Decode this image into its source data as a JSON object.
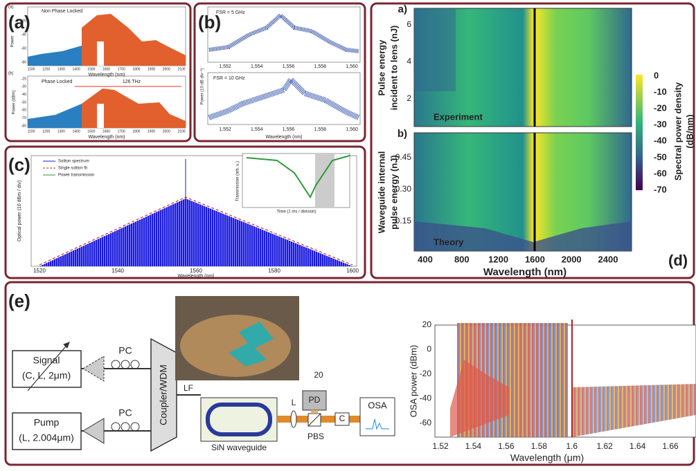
{
  "panel_a": {
    "label": "(a)",
    "top": {
      "sublabel": "(a)",
      "annotation": "Non Phase Locked",
      "y_label": "Power",
      "x_label": "Wavelength (nm)",
      "y_ticks": [
        "-20",
        "-40",
        "-60",
        "-80"
      ]
    },
    "bottom": {
      "sublabel": "(b)",
      "annotation": "Phase Locked",
      "span": "126 THz",
      "y_label": "Power (dBm)",
      "x_label": "Wavelength (nm)",
      "y_ticks": [
        "-20",
        "-30",
        "-40",
        "-50",
        "-60",
        "-70",
        "-80"
      ]
    },
    "x_ticks": [
      "1100",
      "1200",
      "1300",
      "1400",
      "1500",
      "1600",
      "1700",
      "1800",
      "1900",
      "2000",
      "2100"
    ]
  },
  "panel_b": {
    "label": "(b)",
    "top_annotation": "FSR = 5 GHz",
    "bottom_annotation": "FSR = 10 GHz",
    "y_label": "Power (10 dB div⁻¹)",
    "x_label": "Wavelength (nm)",
    "x_ticks": [
      "1,552",
      "1,554",
      "1,556",
      "1,558",
      "1,560"
    ]
  },
  "panel_c": {
    "label": "(c)",
    "legend": [
      "Soliton spectrum",
      "Single soliton fit",
      "Power transmission"
    ],
    "y_label": "Optical power (10 dBm / div)",
    "x_label": "Wavelength (nm)",
    "x_ticks": [
      "1520",
      "1540",
      "1560",
      "1580",
      "1600"
    ],
    "inset": {
      "y_label": "Transmission (arb. u.)",
      "x_label": "Time (1 ms / division)"
    }
  },
  "panel_d": {
    "label": "(d)",
    "top": {
      "sublabel": "a)",
      "y_label_1": "Pulse energy",
      "y_label_2": "incident to lens (nJ)",
      "y_ticks": [
        "6",
        "4",
        "2"
      ],
      "annotation": "Experiment"
    },
    "bottom": {
      "sublabel": "b)",
      "y_label_1": "Waveguide internal",
      "y_label_2": "pulse energy (nJ)",
      "y_ticks": [
        "0.45",
        "0.30",
        "0.15"
      ],
      "annotation": "Theory"
    },
    "x_ticks": [
      "400",
      "800",
      "1200",
      "1600",
      "2000",
      "2400"
    ],
    "x_label": "Wavelength (nm)",
    "colorbar": {
      "ticks": [
        "0",
        "-10",
        "-20",
        "-30",
        "-40",
        "-50",
        "-60",
        "-70"
      ],
      "label_1": "Spectral power density",
      "label_2": "(dB/nm)"
    }
  },
  "panel_e": {
    "label": "(e)",
    "diagram": {
      "signal_1": "Signal",
      "signal_2": "(C, L, 2μm)",
      "pump_1": "Pump",
      "pump_2": "(L, 2.004μm)",
      "pc_top": "PC",
      "pc_bottom": "PC",
      "coupler": "Coupler/WDM",
      "lf": "LF",
      "waveguide": "SiN waveguide",
      "lens": "L",
      "pd": "PD",
      "pbs": "PBS",
      "collimator": "C",
      "osa": "OSA",
      "photo_note": "20"
    },
    "plot": {
      "y_label": "OSA power (dBm)",
      "x_label": "Wavelength (μm)",
      "y_ticks": [
        "20",
        "0",
        "-20",
        "-40",
        "-60"
      ],
      "x_ticks": [
        "1.52",
        "1.54",
        "1.56",
        "1.58",
        "1.6",
        "1.62",
        "1.64",
        "1.66"
      ]
    }
  }
}
